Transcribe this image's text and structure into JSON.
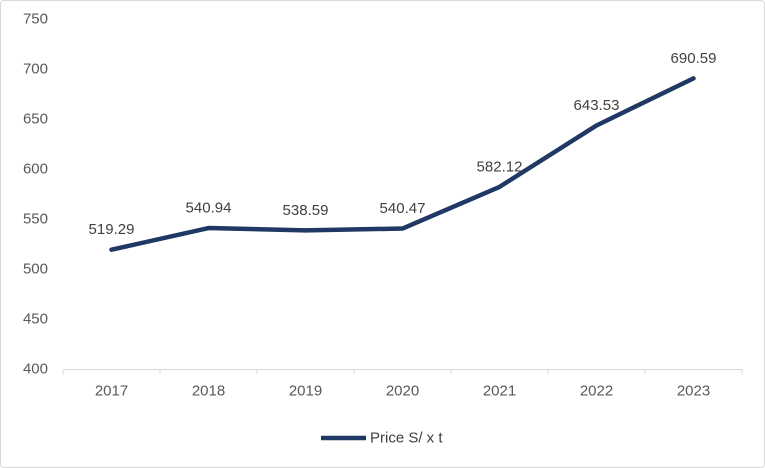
{
  "chart_data": {
    "type": "line",
    "title": "",
    "categories": [
      "2017",
      "2018",
      "2019",
      "2020",
      "2021",
      "2022",
      "2023"
    ],
    "series": [
      {
        "name": "Price S/ x t",
        "values": [
          519.29,
          540.94,
          538.59,
          540.47,
          582.12,
          643.53,
          690.59
        ]
      }
    ],
    "data_labels": [
      "519.29",
      "540.94",
      "538.59",
      "540.47",
      "582.12",
      "643.53",
      "690.59"
    ],
    "xlabel": "",
    "ylabel": "",
    "ylim": [
      400,
      750
    ],
    "yticks": [
      400,
      450,
      500,
      550,
      600,
      650,
      700,
      750
    ],
    "grid": false,
    "legend_position": "bottom",
    "colors": {
      "line": "#1f3864",
      "axis": "#d9d9d9",
      "tick_label": "#595959",
      "data_label": "#404040",
      "legend_label": "#404040",
      "background": "#ffffff",
      "border": "#d9d9d9"
    }
  }
}
